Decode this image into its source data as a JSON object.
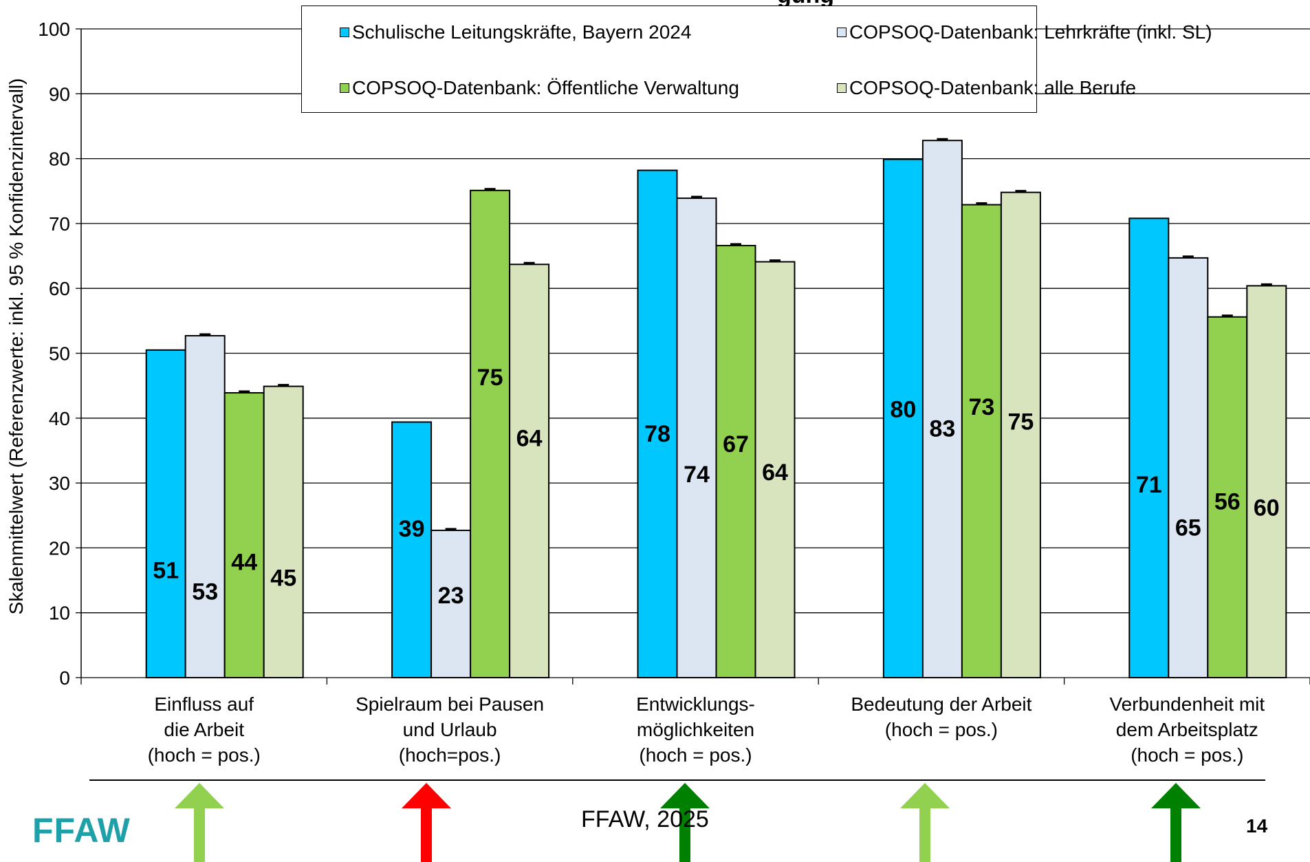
{
  "page": {
    "title_fragment": "gung",
    "logo": "FFAW",
    "footer": "FFAW, 2025",
    "page_number": "14"
  },
  "arrows": [
    {
      "category_index": 0,
      "color": "#92d050"
    },
    {
      "category_index": 1,
      "color": "#ff0000"
    },
    {
      "category_index": 2,
      "color": "#008000"
    },
    {
      "category_index": 3,
      "color": "#92d050"
    },
    {
      "category_index": 4,
      "color": "#008000"
    }
  ],
  "chart_data": {
    "type": "bar",
    "title": "",
    "ylabel": "Skalenmittelwert (Referenzwerte: inkl. 95 % Konfidenzintervall)",
    "xlabel": "",
    "ylim": [
      0,
      100
    ],
    "yticks": [
      "0",
      "10",
      "20",
      "30",
      "40",
      "50",
      "60",
      "70",
      "80",
      "90",
      "100"
    ],
    "grid": true,
    "legend_position": "top",
    "categories": [
      [
        "Einfluss auf",
        "die Arbeit",
        "(hoch = pos.)"
      ],
      [
        "Spielraum bei Pausen",
        "und Urlaub",
        "(hoch=pos.)"
      ],
      [
        "Entwicklungs-",
        "möglichkeiten",
        "(hoch = pos.)"
      ],
      [
        "Bedeutung der Arbeit",
        "(hoch = pos.)"
      ],
      [
        "Verbundenheit mit",
        "dem Arbeitsplatz",
        "(hoch = pos.)"
      ]
    ],
    "series": [
      {
        "name": "Schulische Leitungskräfte, Bayern 2024",
        "color": "#00c8ff",
        "values": [
          50.5,
          39.4,
          78.2,
          79.9,
          70.8
        ],
        "labels": [
          "51",
          "39",
          "78",
          "80",
          "71"
        ],
        "error": false
      },
      {
        "name": "COPSOQ-Datenbank: Lehrkräfte (inkl. SL)",
        "color": "#dce6f2",
        "values": [
          52.7,
          22.7,
          73.9,
          82.8,
          64.7
        ],
        "labels": [
          "53",
          "23",
          "74",
          "83",
          "65"
        ],
        "error": true
      },
      {
        "name": "COPSOQ-Datenbank: Öffentliche Verwaltung",
        "color": "#92d050",
        "values": [
          43.9,
          75.1,
          66.6,
          72.9,
          55.6
        ],
        "labels": [
          "44",
          "75",
          "67",
          "73",
          "56"
        ],
        "error": true
      },
      {
        "name": "COPSOQ-Datenbank: alle Berufe",
        "color": "#d7e4bd",
        "values": [
          44.9,
          63.7,
          64.1,
          74.8,
          60.4
        ],
        "labels": [
          "45",
          "64",
          "64",
          "75",
          "60"
        ],
        "error": true
      }
    ]
  }
}
